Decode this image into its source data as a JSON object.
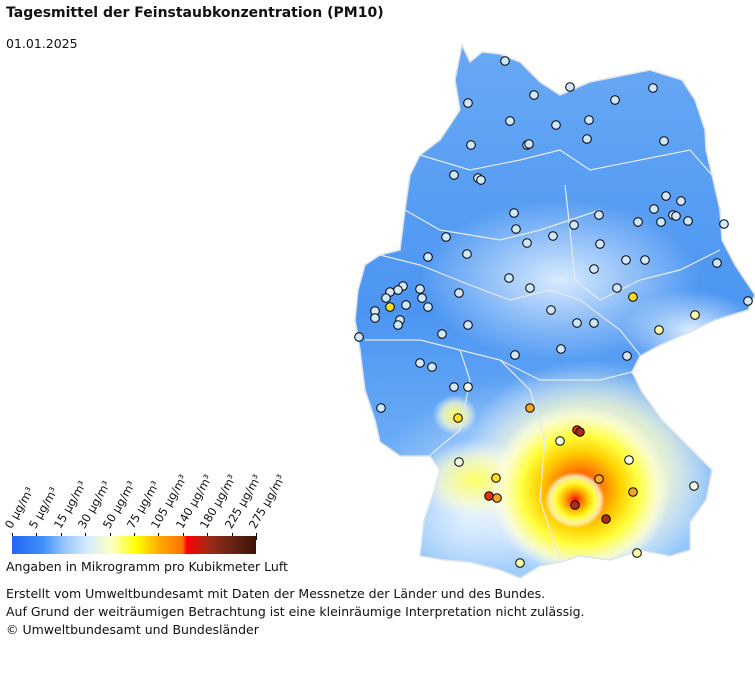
{
  "title": "Tagesmittel der Feinstaubkonzentration (PM10)",
  "date": "01.01.2025",
  "legend": {
    "ticks": [
      "0 µg/m³",
      "5 µg/m³",
      "15 µg/m³",
      "30 µg/m³",
      "50 µg/m³",
      "75 µg/m³",
      "105 µg/m³",
      "140 µg/m³",
      "180 µg/m³",
      "225 µg/m³",
      "275 µg/m³"
    ],
    "caption": "Angaben in Mikrogramm pro Kubikmeter Luft"
  },
  "footer": {
    "line1": "Erstellt vom Umweltbundesamt mit Daten der Messnetze der Länder und des Bundes.",
    "line2": "Auf Grund der weiträumigen Betrachtung ist eine kleinräumige Interpretation nicht zulässig.",
    "line3": "© Umweltbundesamt und Bundesländer"
  },
  "colors": {
    "low": "#3d8ff8",
    "mid": "#ffff00",
    "high": "#ff0000",
    "station_outline": "#000000"
  },
  "station_values": [
    10,
    10,
    10,
    10,
    10,
    10,
    10,
    10,
    10,
    10,
    10,
    10,
    10,
    10,
    10,
    10,
    10,
    10,
    10,
    10,
    10,
    10,
    10,
    10,
    10,
    10,
    10,
    10,
    10,
    10,
    10,
    10,
    10,
    10,
    10,
    10,
    10,
    10,
    10,
    10,
    10,
    10,
    10,
    10,
    10,
    10,
    10,
    10,
    10,
    10,
    10,
    10,
    10,
    10,
    10,
    10,
    10,
    10,
    10,
    10,
    10,
    10,
    10,
    10,
    10,
    10,
    10,
    10,
    10,
    10,
    55,
    55,
    35,
    35,
    55,
    80,
    130,
    150,
    60,
    120,
    90,
    150,
    150,
    90,
    85,
    35,
    35,
    30,
    25,
    20,
    20,
    20
  ]
}
